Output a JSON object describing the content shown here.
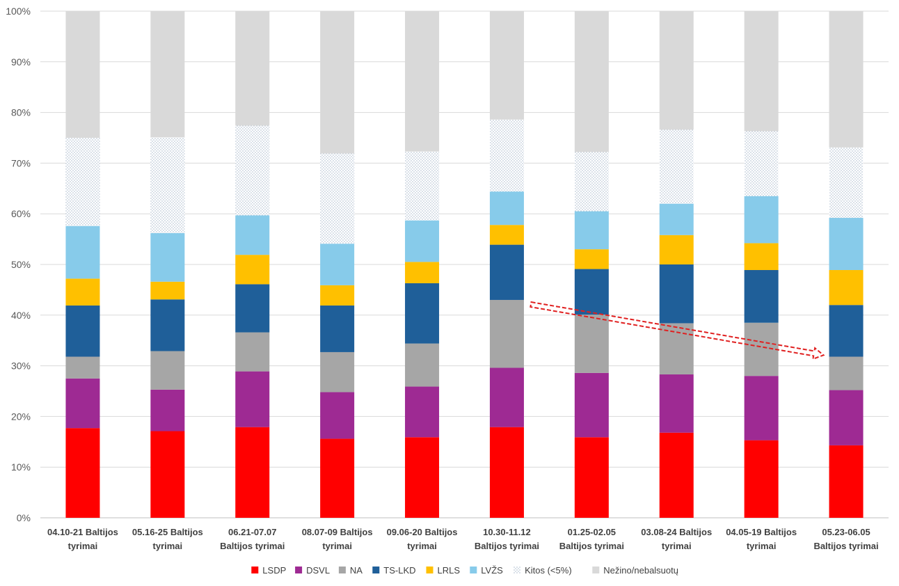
{
  "chart_data": {
    "type": "bar",
    "stacked": true,
    "percent": true,
    "categories": [
      [
        "04.10-21 Baltijos",
        "tyrimai"
      ],
      [
        "05.16-25 Baltijos",
        "tyrimai"
      ],
      [
        "06.21-07.07",
        "Baltijos tyrimai"
      ],
      [
        "08.07-09 Baltijos",
        "tyrimai"
      ],
      [
        "09.06-20 Baltijos",
        "tyrimai"
      ],
      [
        "10.30-11.12",
        "Baltijos tyrimai"
      ],
      [
        "01.25-02.05",
        "Baltijos tyrimai"
      ],
      [
        "03.08-24 Baltijos",
        "tyrimai"
      ],
      [
        "04.05-19 Baltijos",
        "tyrimai"
      ],
      [
        "05.23-06.05",
        "Baltijos tyrimai"
      ]
    ],
    "series": [
      {
        "name": "LSDP",
        "color": "#ff0000",
        "values": [
          17.7,
          17.1,
          17.9,
          15.6,
          15.9,
          17.9,
          15.9,
          16.8,
          15.3,
          14.3
        ]
      },
      {
        "name": "DSVL",
        "color": "#9e2a93",
        "values": [
          9.8,
          8.2,
          11.0,
          9.2,
          10.0,
          11.7,
          12.7,
          11.5,
          12.7,
          10.9
        ]
      },
      {
        "name": "NA",
        "color": "#a6a6a6",
        "values": [
          4.3,
          7.6,
          7.7,
          7.9,
          8.5,
          13.4,
          11.5,
          10.1,
          10.5,
          6.6
        ]
      },
      {
        "name": "TS-LKD",
        "color": "#1f5f99",
        "values": [
          10.1,
          10.2,
          9.5,
          9.2,
          11.9,
          10.9,
          9.0,
          11.6,
          10.4,
          10.2
        ]
      },
      {
        "name": "LRLS",
        "color": "#ffc000",
        "values": [
          5.3,
          3.5,
          5.8,
          4.0,
          4.2,
          3.9,
          3.9,
          5.8,
          5.3,
          6.9
        ]
      },
      {
        "name": "LVŽS",
        "color": "#87cbea",
        "values": [
          10.4,
          9.6,
          7.8,
          8.2,
          8.2,
          6.6,
          7.5,
          6.2,
          9.3,
          10.3
        ]
      },
      {
        "name": "Kitos (<5%)",
        "color": "#dbe4ee",
        "pattern": "dots",
        "values": [
          17.4,
          18.9,
          17.7,
          17.8,
          13.6,
          14.2,
          11.7,
          14.6,
          12.8,
          13.9
        ]
      },
      {
        "name": "Nežino/nebalsuotų",
        "color": "#d9d9d9",
        "values": [
          25.0,
          24.9,
          22.6,
          28.1,
          27.7,
          21.4,
          27.8,
          23.4,
          23.7,
          26.9
        ]
      }
    ],
    "ylim": [
      0,
      100
    ],
    "yticks": [
      0,
      10,
      20,
      30,
      40,
      50,
      60,
      70,
      80,
      90,
      100
    ],
    "ytick_labels": [
      "0%",
      "10%",
      "20%",
      "30%",
      "40%",
      "50%",
      "60%",
      "70%",
      "80%",
      "90%",
      "100%"
    ],
    "grid": true,
    "legend_position": "bottom",
    "annotation": {
      "type": "dashed-arrow",
      "color": "#e02020",
      "from": {
        "category": 5,
        "value": 42.1
      },
      "to": {
        "category": 9,
        "value": 32.1
      }
    }
  }
}
